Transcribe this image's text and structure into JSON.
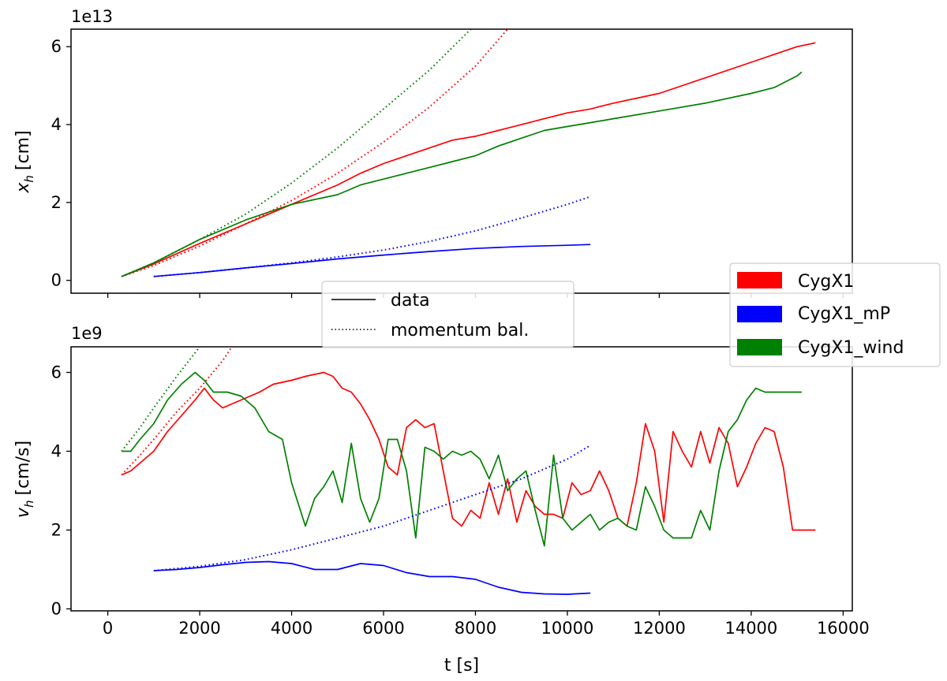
{
  "chart_data": [
    {
      "type": "line",
      "panel": "top",
      "ylabel_main": "x",
      "ylabel_sub": "h",
      "ylabel_unit": "[cm]",
      "offset_text": "1e13",
      "yunit": 10000000000000.0,
      "xlim": [
        -800,
        16200
      ],
      "ylim": [
        -0.33,
        6.45
      ],
      "yticks": [
        0,
        2,
        4,
        6
      ],
      "yticklabels": [
        "0",
        "2",
        "4",
        "6"
      ],
      "series": [
        {
          "name": "CygX1",
          "color": "#ff0000",
          "style": "solid",
          "x": [
            300,
            1000,
            2000,
            3000,
            4000,
            5000,
            5500,
            6000,
            6500,
            7000,
            7500,
            8000,
            8500,
            9000,
            9500,
            10000,
            10500,
            11000,
            12000,
            13000,
            14000,
            14500,
            15000,
            15400
          ],
          "y": [
            0.1,
            0.42,
            0.95,
            1.45,
            1.95,
            2.45,
            2.75,
            3.0,
            3.2,
            3.4,
            3.6,
            3.7,
            3.85,
            4.0,
            4.15,
            4.3,
            4.4,
            4.55,
            4.8,
            5.2,
            5.6,
            5.8,
            6.0,
            6.1
          ]
        },
        {
          "name": "CygX1_wind",
          "color": "#008000",
          "style": "solid",
          "x": [
            300,
            1000,
            2000,
            3000,
            4000,
            5000,
            5500,
            6000,
            6500,
            7000,
            7500,
            8000,
            8500,
            9000,
            9500,
            10000,
            10500,
            11000,
            12000,
            13000,
            14000,
            14500,
            15000,
            15100
          ],
          "y": [
            0.1,
            0.45,
            1.05,
            1.55,
            1.95,
            2.2,
            2.45,
            2.6,
            2.75,
            2.9,
            3.05,
            3.2,
            3.45,
            3.65,
            3.85,
            3.95,
            4.05,
            4.15,
            4.35,
            4.55,
            4.8,
            4.95,
            5.25,
            5.35
          ]
        },
        {
          "name": "CygX1_mP",
          "color": "#0000ff",
          "style": "solid",
          "x": [
            1000,
            2000,
            3000,
            4000,
            5000,
            6000,
            7000,
            8000,
            9000,
            10000,
            10500
          ],
          "y": [
            0.1,
            0.2,
            0.32,
            0.43,
            0.55,
            0.65,
            0.74,
            0.82,
            0.87,
            0.9,
            0.92
          ]
        },
        {
          "name": "CygX1",
          "color": "#ff0000",
          "style": "dotted",
          "x": [
            300,
            1000,
            2000,
            3000,
            4000,
            5000,
            6000,
            7000,
            8000,
            8700
          ],
          "y": [
            0.1,
            0.38,
            0.88,
            1.45,
            2.05,
            2.75,
            3.55,
            4.45,
            5.5,
            6.45
          ]
        },
        {
          "name": "CygX1_wind",
          "color": "#008000",
          "style": "dotted",
          "x": [
            300,
            1000,
            2000,
            3000,
            4000,
            5000,
            6000,
            7000,
            7900
          ],
          "y": [
            0.1,
            0.45,
            1.05,
            1.7,
            2.5,
            3.4,
            4.4,
            5.4,
            6.45
          ]
        },
        {
          "name": "CygX1_mP",
          "color": "#0000ff",
          "style": "dotted",
          "x": [
            1000,
            2000,
            3000,
            4000,
            5000,
            6000,
            7000,
            8000,
            9000,
            10000,
            10500
          ],
          "y": [
            0.1,
            0.2,
            0.32,
            0.45,
            0.6,
            0.78,
            1.0,
            1.27,
            1.6,
            1.95,
            2.15
          ]
        }
      ]
    },
    {
      "type": "line",
      "panel": "bottom",
      "ylabel_main": "v",
      "ylabel_sub": "h",
      "ylabel_unit": "[cm/s]",
      "offset_text": "1e9",
      "yunit": 1000000000.0,
      "xlabel": "t [s]",
      "xlim": [
        -800,
        16200
      ],
      "ylim": [
        -0.05,
        6.65
      ],
      "xticks": [
        0,
        2000,
        4000,
        6000,
        8000,
        10000,
        12000,
        14000,
        16000
      ],
      "xticklabels": [
        "0",
        "2000",
        "4000",
        "6000",
        "8000",
        "10000",
        "12000",
        "14000",
        "16000"
      ],
      "yticks": [
        0,
        2,
        4,
        6
      ],
      "yticklabels": [
        "0",
        "2",
        "4",
        "6"
      ],
      "series": [
        {
          "name": "CygX1",
          "color": "#ff0000",
          "style": "solid",
          "x": [
            300,
            500,
            700,
            1000,
            1300,
            1600,
            1900,
            2100,
            2300,
            2500,
            2700,
            2900,
            3100,
            3300,
            3600,
            3800,
            4000,
            4300,
            4500,
            4700,
            4900,
            5100,
            5300,
            5500,
            5700,
            5900,
            6100,
            6300,
            6500,
            6700,
            6900,
            7100,
            7300,
            7500,
            7700,
            7900,
            8100,
            8300,
            8500,
            8700,
            8900,
            9100,
            9300,
            9500,
            9700,
            9900,
            10100,
            10300,
            10500,
            10700,
            10900,
            11100,
            11300,
            11500,
            11700,
            11900,
            12100,
            12300,
            12500,
            12700,
            12900,
            13100,
            13300,
            13500,
            13700,
            13900,
            14100,
            14300,
            14500,
            14700,
            14900,
            15100,
            15300,
            15400
          ],
          "y": [
            3.4,
            3.5,
            3.7,
            4.0,
            4.5,
            4.9,
            5.3,
            5.6,
            5.3,
            5.1,
            5.2,
            5.3,
            5.4,
            5.5,
            5.7,
            5.75,
            5.8,
            5.9,
            5.95,
            6.0,
            5.9,
            5.6,
            5.5,
            5.2,
            4.8,
            4.3,
            3.6,
            3.4,
            4.6,
            4.8,
            4.6,
            4.7,
            3.5,
            2.3,
            2.1,
            2.5,
            2.3,
            3.2,
            2.4,
            3.3,
            2.2,
            3.0,
            2.6,
            2.4,
            2.4,
            2.3,
            3.2,
            2.9,
            3.0,
            3.5,
            3.0,
            2.3,
            2.1,
            3.2,
            4.7,
            4.0,
            2.2,
            4.5,
            4.0,
            3.6,
            4.5,
            3.7,
            4.6,
            4.2,
            3.1,
            3.6,
            4.2,
            4.6,
            4.5,
            3.6,
            2.0,
            2.0,
            2.0,
            2.0
          ]
        },
        {
          "name": "CygX1_wind",
          "color": "#008000",
          "style": "solid",
          "x": [
            300,
            500,
            700,
            1000,
            1300,
            1600,
            1900,
            2100,
            2300,
            2600,
            2900,
            3200,
            3500,
            3800,
            4000,
            4300,
            4500,
            4700,
            4900,
            5100,
            5300,
            5500,
            5700,
            5900,
            6100,
            6300,
            6500,
            6700,
            6900,
            7100,
            7300,
            7500,
            7700,
            7900,
            8100,
            8300,
            8500,
            8700,
            8900,
            9100,
            9300,
            9500,
            9700,
            9900,
            10100,
            10300,
            10500,
            10700,
            10900,
            11100,
            11300,
            11500,
            11700,
            11900,
            12100,
            12300,
            12500,
            12700,
            12900,
            13100,
            13300,
            13500,
            13700,
            13900,
            14100,
            14300,
            14500,
            14700,
            14900,
            15100
          ],
          "y": [
            4.0,
            4.0,
            4.3,
            4.7,
            5.3,
            5.7,
            6.0,
            5.8,
            5.5,
            5.5,
            5.4,
            5.1,
            4.5,
            4.3,
            3.2,
            2.1,
            2.8,
            3.1,
            3.5,
            2.7,
            4.2,
            2.8,
            2.2,
            2.8,
            4.3,
            4.3,
            3.5,
            1.8,
            4.1,
            4.0,
            3.8,
            4.0,
            3.9,
            4.0,
            3.8,
            3.3,
            3.9,
            3.0,
            3.3,
            3.5,
            2.5,
            1.6,
            3.9,
            2.3,
            2.0,
            2.2,
            2.4,
            2.0,
            2.2,
            2.3,
            2.1,
            2.0,
            3.1,
            2.6,
            2.0,
            1.8,
            1.8,
            1.8,
            2.5,
            2.0,
            3.5,
            4.5,
            4.8,
            5.3,
            5.6,
            5.5,
            5.5,
            5.5,
            5.5,
            5.5
          ]
        },
        {
          "name": "CygX1_mP",
          "color": "#0000ff",
          "style": "solid",
          "x": [
            1000,
            1500,
            2000,
            2500,
            3000,
            3500,
            4000,
            4500,
            5000,
            5500,
            6000,
            6500,
            7000,
            7500,
            8000,
            8500,
            9000,
            9500,
            10000,
            10500
          ],
          "y": [
            0.97,
            1.0,
            1.05,
            1.12,
            1.18,
            1.2,
            1.15,
            1.0,
            1.0,
            1.15,
            1.1,
            0.92,
            0.82,
            0.82,
            0.75,
            0.55,
            0.42,
            0.38,
            0.37,
            0.4
          ]
        },
        {
          "name": "CygX1",
          "color": "#ff0000",
          "style": "dotted",
          "x": [
            300,
            700,
            1000,
            1500,
            2000,
            2500,
            2700
          ],
          "y": [
            3.4,
            3.9,
            4.3,
            5.0,
            5.6,
            6.3,
            6.65
          ]
        },
        {
          "name": "CygX1_wind",
          "color": "#008000",
          "style": "dotted",
          "x": [
            300,
            700,
            1000,
            1500,
            2000,
            2100
          ],
          "y": [
            4.0,
            4.6,
            5.1,
            5.9,
            6.65,
            6.8
          ]
        },
        {
          "name": "CygX1_mP",
          "color": "#0000ff",
          "style": "dotted",
          "x": [
            1000,
            2000,
            3000,
            4000,
            5000,
            6000,
            7000,
            8000,
            9000,
            10000,
            10500
          ],
          "y": [
            0.97,
            1.08,
            1.25,
            1.5,
            1.8,
            2.1,
            2.5,
            2.9,
            3.3,
            3.8,
            4.15
          ]
        }
      ]
    }
  ],
  "linestyle_legend": {
    "items": [
      {
        "label": "data",
        "style": "solid"
      },
      {
        "label": "momentum bal.",
        "style": "dotted"
      }
    ]
  },
  "series_legend": {
    "items": [
      {
        "label": "CygX1",
        "color": "#ff0000"
      },
      {
        "label": "CygX1_mP",
        "color": "#0000ff"
      },
      {
        "label": "CygX1_wind",
        "color": "#008000"
      }
    ]
  }
}
